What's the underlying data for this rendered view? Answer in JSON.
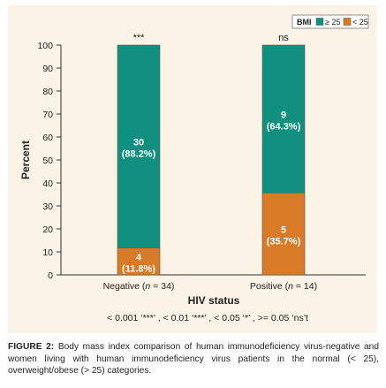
{
  "chart_data": {
    "type": "bar",
    "stacked": true,
    "xlabel": "HIV status",
    "ylabel": "Percent",
    "ylim": [
      0,
      100
    ],
    "yticks": [
      "0",
      "10",
      "20",
      "30",
      "40",
      "50",
      "60",
      "70",
      "80",
      "90",
      "100"
    ],
    "categories": [
      {
        "label": "Negative (n = 34)",
        "prefix": "Negative (",
        "n": "n",
        "suffix": " = 34)",
        "significance": "***"
      },
      {
        "label": "Positive (n = 14)",
        "prefix": "Positive (",
        "n": "n",
        "suffix": " = 14)",
        "significance": "ns"
      }
    ],
    "legend": {
      "title": "BMI",
      "placement": "top-right",
      "items": [
        {
          "label": "≥ 25",
          "color": "#11907f"
        },
        {
          "label": "< 25",
          "color": "#d97a27"
        }
      ]
    },
    "series": [
      {
        "name": "< 25",
        "color": "#d97a27",
        "values": [
          11.8,
          35.7
        ],
        "counts": [
          "4",
          "5"
        ],
        "pct_labels": [
          "(11.8%)",
          "(35.7%)"
        ]
      },
      {
        "name": "≥ 25",
        "color": "#11907f",
        "values": [
          88.2,
          64.3
        ],
        "counts": [
          "30",
          "9"
        ],
        "pct_labels": [
          "(88.2%)",
          "(64.3%)"
        ]
      }
    ],
    "footnote": "< 0.001 ‘***’ , < 0.01 ‘***’ , < 0.05 ‘*’ , >= 0.05 ‘ns’t"
  },
  "caption": {
    "label": "FIGURE 2:",
    "text": "Body mass index comparison of human immunodeficiency virus-negative and women living with human immunodeficiency virus patients in the normal (< 25), overweight/obese (> 25) categories."
  }
}
